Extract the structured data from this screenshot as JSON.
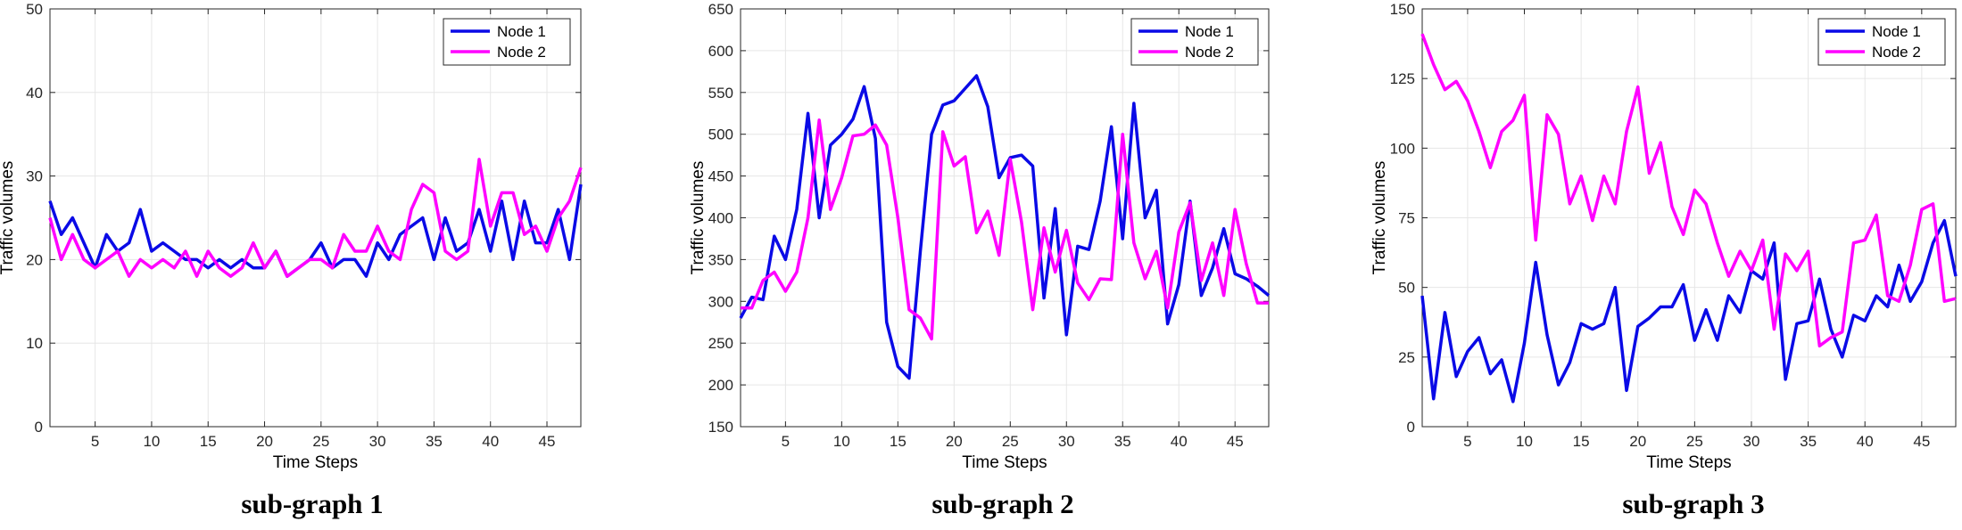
{
  "colors": {
    "node1": "#0a0ae6",
    "node2": "#ff00ff",
    "grid": "#e6e6e6",
    "axis": "#262626"
  },
  "chart_data": [
    {
      "type": "line",
      "caption": "sub-graph 1",
      "xlabel": "Time Steps",
      "ylabel": "Traffic volumes",
      "xlim": [
        1,
        48
      ],
      "ylim": [
        0,
        50
      ],
      "xticks": [
        5,
        10,
        15,
        20,
        25,
        30,
        35,
        40,
        45
      ],
      "yticks": [
        0,
        10,
        20,
        30,
        40,
        50
      ],
      "grid": true,
      "legend_position": "top-right",
      "x": [
        1,
        2,
        3,
        4,
        5,
        6,
        7,
        8,
        9,
        10,
        11,
        12,
        13,
        14,
        15,
        16,
        17,
        18,
        19,
        20,
        21,
        22,
        23,
        24,
        25,
        26,
        27,
        28,
        29,
        30,
        31,
        32,
        33,
        34,
        35,
        36,
        37,
        38,
        39,
        40,
        41,
        42,
        43,
        44,
        45,
        46,
        47,
        48
      ],
      "series": [
        {
          "name": "Node 1",
          "color": "#0a0ae6",
          "values": [
            27,
            23,
            25,
            22,
            19,
            23,
            21,
            22,
            26,
            21,
            22,
            21,
            20,
            20,
            19,
            20,
            19,
            20,
            19,
            19,
            21,
            18,
            19,
            20,
            22,
            19,
            20,
            20,
            18,
            22,
            20,
            23,
            24,
            25,
            20,
            25,
            21,
            22,
            26,
            21,
            27,
            20,
            27,
            22,
            22,
            26,
            20,
            29
          ]
        },
        {
          "name": "Node 2",
          "color": "#ff00ff",
          "values": [
            25,
            20,
            23,
            20,
            19,
            20,
            21,
            18,
            20,
            19,
            20,
            19,
            21,
            18,
            21,
            19,
            18,
            19,
            22,
            19,
            21,
            18,
            19,
            20,
            20,
            19,
            23,
            21,
            21,
            24,
            21,
            20,
            26,
            29,
            28,
            21,
            20,
            21,
            32,
            24,
            28,
            28,
            23,
            24,
            21,
            25,
            27,
            31
          ]
        }
      ]
    },
    {
      "type": "line",
      "caption": "sub-graph 2",
      "xlabel": "Time Steps",
      "ylabel": "Traffic volumes",
      "xlim": [
        1,
        48
      ],
      "ylim": [
        150,
        650
      ],
      "xticks": [
        5,
        10,
        15,
        20,
        25,
        30,
        35,
        40,
        45
      ],
      "yticks": [
        150,
        200,
        250,
        300,
        350,
        400,
        450,
        500,
        550,
        600,
        650
      ],
      "grid": true,
      "legend_position": "top-right",
      "x": [
        1,
        2,
        3,
        4,
        5,
        6,
        7,
        8,
        9,
        10,
        11,
        12,
        13,
        14,
        15,
        16,
        17,
        18,
        19,
        20,
        21,
        22,
        23,
        24,
        25,
        26,
        27,
        28,
        29,
        30,
        31,
        32,
        33,
        34,
        35,
        36,
        37,
        38,
        39,
        40,
        41,
        42,
        43,
        44,
        45,
        46,
        47,
        48
      ],
      "series": [
        {
          "name": "Node 1",
          "color": "#0a0ae6",
          "values": [
            280,
            305,
            302,
            378,
            350,
            410,
            525,
            400,
            487,
            500,
            518,
            557,
            495,
            275,
            222,
            208,
            360,
            500,
            535,
            540,
            555,
            570,
            533,
            448,
            472,
            475,
            462,
            304,
            411,
            260,
            366,
            362,
            420,
            509,
            375,
            537,
            400,
            433,
            273,
            320,
            420,
            307,
            340,
            387,
            333,
            327,
            318,
            307
          ]
        },
        {
          "name": "Node 2",
          "color": "#ff00ff",
          "values": [
            292,
            292,
            325,
            335,
            312,
            335,
            400,
            517,
            410,
            448,
            498,
            500,
            511,
            487,
            400,
            290,
            280,
            255,
            503,
            462,
            473,
            382,
            408,
            355,
            470,
            395,
            290,
            388,
            335,
            385,
            322,
            302,
            327,
            326,
            500,
            370,
            327,
            360,
            292,
            383,
            418,
            325,
            370,
            307,
            410,
            345,
            298,
            298
          ]
        }
      ]
    },
    {
      "type": "line",
      "caption": "sub-graph 3",
      "xlabel": "Time Steps",
      "ylabel": "Traffic volumes",
      "xlim": [
        1,
        48
      ],
      "ylim": [
        0,
        150
      ],
      "xticks": [
        5,
        10,
        15,
        20,
        25,
        30,
        35,
        40,
        45
      ],
      "yticks": [
        0,
        25,
        50,
        75,
        100,
        125,
        150
      ],
      "grid": true,
      "legend_position": "top-right",
      "x": [
        1,
        2,
        3,
        4,
        5,
        6,
        7,
        8,
        9,
        10,
        11,
        12,
        13,
        14,
        15,
        16,
        17,
        18,
        19,
        20,
        21,
        22,
        23,
        24,
        25,
        26,
        27,
        28,
        29,
        30,
        31,
        32,
        33,
        34,
        35,
        36,
        37,
        38,
        39,
        40,
        41,
        42,
        43,
        44,
        45,
        46,
        47,
        48
      ],
      "series": [
        {
          "name": "Node 1",
          "color": "#0a0ae6",
          "values": [
            47,
            10,
            41,
            18,
            27,
            32,
            19,
            24,
            9,
            30,
            59,
            33,
            15,
            23,
            37,
            35,
            37,
            50,
            13,
            36,
            39,
            43,
            43,
            51,
            31,
            42,
            31,
            47,
            41,
            56,
            53,
            66,
            17,
            37,
            38,
            53,
            35,
            25,
            40,
            38,
            47,
            43,
            58,
            45,
            52,
            66,
            74,
            54
          ]
        },
        {
          "name": "Node 2",
          "color": "#ff00ff",
          "values": [
            141,
            130,
            121,
            124,
            117,
            106,
            93,
            106,
            110,
            119,
            67,
            112,
            105,
            80,
            90,
            74,
            90,
            80,
            106,
            122,
            91,
            102,
            79,
            69,
            85,
            80,
            66,
            54,
            63,
            56,
            67,
            35,
            62,
            56,
            63,
            29,
            32,
            34,
            66,
            67,
            76,
            47,
            45,
            58,
            78,
            80,
            45,
            46
          ]
        }
      ]
    }
  ]
}
